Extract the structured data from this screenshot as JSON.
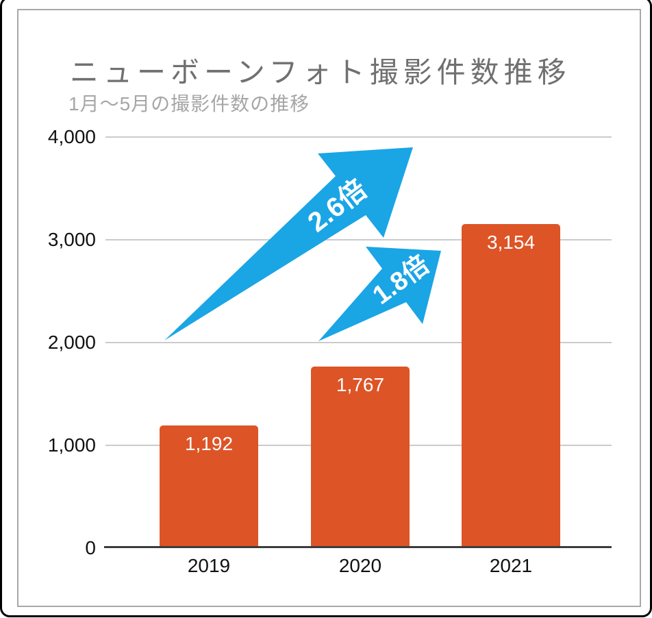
{
  "chart_data": {
    "type": "bar",
    "title": "ニューボーンフォト撮影件数推移",
    "subtitle": "1月〜5月の撮影件数の推移",
    "categories": [
      "2019",
      "2020",
      "2021"
    ],
    "values": [
      1192,
      1767,
      3154
    ],
    "value_labels": [
      "1,192",
      "1,767",
      "3,154"
    ],
    "ylabel": "",
    "xlabel": "",
    "ylim": [
      0,
      4000
    ],
    "y_ticks": [
      0,
      1000,
      2000,
      3000,
      4000
    ],
    "y_tick_labels": [
      "0",
      "1,000",
      "2,000",
      "3,000",
      "4,000"
    ],
    "grid": true,
    "legend": false,
    "bar_color": "#dd5426",
    "annotation_color": "#1aa5e5",
    "annotations": [
      {
        "label": "2.6倍",
        "from_category": "2019",
        "to_category": "2021",
        "multiplier": 2.6
      },
      {
        "label": "1.8倍",
        "from_category": "2020",
        "to_category": "2021",
        "multiplier": 1.8
      }
    ]
  }
}
